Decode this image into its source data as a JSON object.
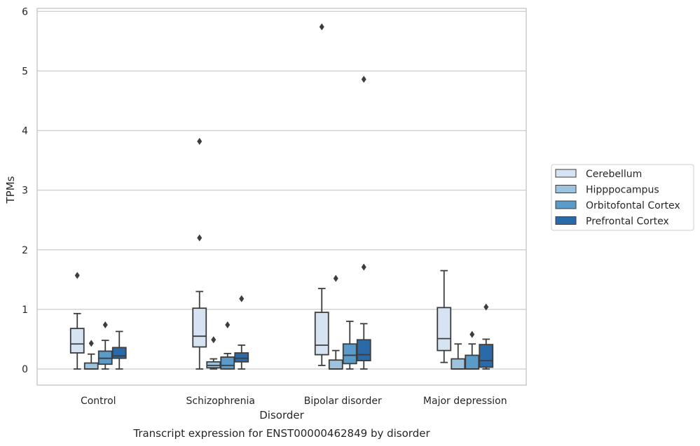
{
  "chart_data": {
    "type": "box",
    "title": "",
    "caption": "Transcript expression for ENST00000462849 by disorder",
    "xlabel": "Disorder",
    "ylabel": "TPMs",
    "ylim": [
      -0.27,
      6.05
    ],
    "yticks": [
      0,
      1,
      2,
      3,
      4,
      5,
      6
    ],
    "grid": "horizontal",
    "legend_position": "right",
    "categories": [
      "Control",
      "Schizophrenia",
      "Bipolar disorder",
      "Major depression"
    ],
    "series": [
      {
        "name": "Cerebellum",
        "color": "#d5e3f2",
        "boxes": [
          {
            "whisker_low": 0.0,
            "q1": 0.27,
            "median": 0.42,
            "q3": 0.68,
            "whisker_high": 0.93,
            "outliers": [
              1.57
            ]
          },
          {
            "whisker_low": 0.0,
            "q1": 0.37,
            "median": 0.55,
            "q3": 1.02,
            "whisker_high": 1.3,
            "outliers": [
              3.82,
              2.2
            ]
          },
          {
            "whisker_low": 0.06,
            "q1": 0.24,
            "median": 0.4,
            "q3": 0.95,
            "whisker_high": 1.35,
            "outliers": [
              5.74
            ]
          },
          {
            "whisker_low": 0.11,
            "q1": 0.31,
            "median": 0.51,
            "q3": 1.03,
            "whisker_high": 1.65,
            "outliers": []
          }
        ]
      },
      {
        "name": "Hipppocampus",
        "color": "#9dc3df",
        "boxes": [
          {
            "whisker_low": 0.0,
            "q1": 0.0,
            "median": 0.0,
            "q3": 0.1,
            "whisker_high": 0.25,
            "outliers": [
              0.43
            ]
          },
          {
            "whisker_low": 0.0,
            "q1": 0.02,
            "median": 0.06,
            "q3": 0.12,
            "whisker_high": 0.17,
            "outliers": [
              0.49
            ]
          },
          {
            "whisker_low": 0.0,
            "q1": 0.0,
            "median": 0.0,
            "q3": 0.15,
            "whisker_high": 0.31,
            "outliers": [
              1.52
            ]
          },
          {
            "whisker_low": 0.0,
            "q1": 0.0,
            "median": 0.0,
            "q3": 0.17,
            "whisker_high": 0.42,
            "outliers": []
          }
        ]
      },
      {
        "name": "Orbitofontal Cortex",
        "color": "#5b9bc9",
        "boxes": [
          {
            "whisker_low": 0.0,
            "q1": 0.08,
            "median": 0.18,
            "q3": 0.3,
            "whisker_high": 0.48,
            "outliers": [
              0.74
            ]
          },
          {
            "whisker_low": 0.0,
            "q1": 0.0,
            "median": 0.06,
            "q3": 0.2,
            "whisker_high": 0.26,
            "outliers": [
              0.74
            ]
          },
          {
            "whisker_low": 0.0,
            "q1": 0.09,
            "median": 0.23,
            "q3": 0.42,
            "whisker_high": 0.8,
            "outliers": []
          },
          {
            "whisker_low": 0.0,
            "q1": 0.0,
            "median": 0.0,
            "q3": 0.23,
            "whisker_high": 0.42,
            "outliers": [
              0.58
            ]
          }
        ]
      },
      {
        "name": "Prefrontal Cortex",
        "color": "#2b6aa8",
        "boxes": [
          {
            "whisker_low": 0.0,
            "q1": 0.18,
            "median": 0.22,
            "q3": 0.36,
            "whisker_high": 0.63,
            "outliers": []
          },
          {
            "whisker_low": 0.0,
            "q1": 0.12,
            "median": 0.18,
            "q3": 0.27,
            "whisker_high": 0.4,
            "outliers": [
              1.18
            ]
          },
          {
            "whisker_low": 0.0,
            "q1": 0.14,
            "median": 0.24,
            "q3": 0.49,
            "whisker_high": 0.76,
            "outliers": [
              4.86,
              1.71
            ]
          },
          {
            "whisker_low": 0.0,
            "q1": 0.03,
            "median": 0.14,
            "q3": 0.41,
            "whisker_high": 0.5,
            "outliers": [
              1.04
            ]
          }
        ]
      }
    ]
  }
}
